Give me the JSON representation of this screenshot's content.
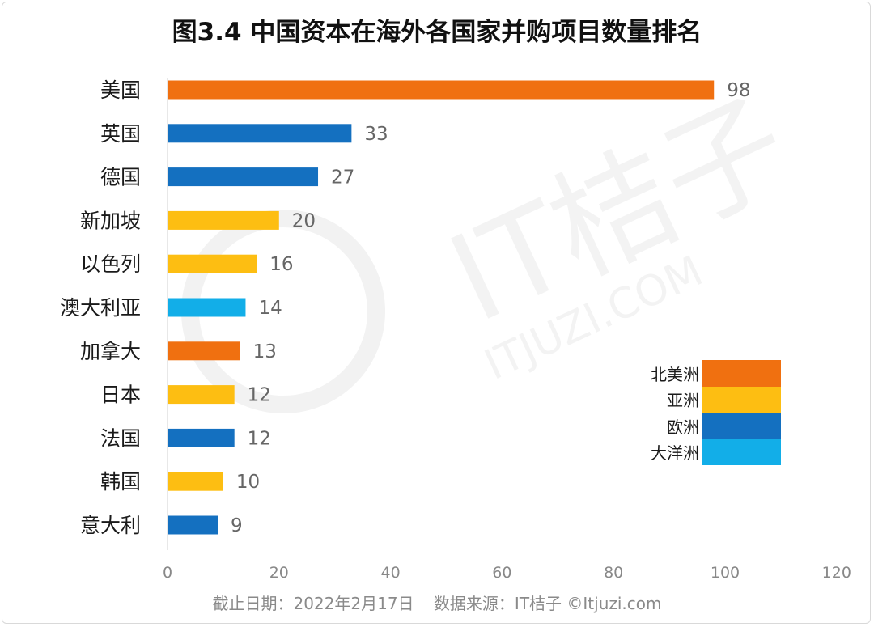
{
  "title": "图3.4  中国资本在海外各国家并购项目数量排名",
  "footer": {
    "date": "截止日期：2022年2月17日",
    "source": "数据来源：IT桔子 ©Itjuzi.com"
  },
  "watermark": {
    "brand": "IT桔子",
    "domain": "ITJUZI.COM"
  },
  "colors": {
    "北美洲": "#f07010",
    "亚洲": "#fdbe12",
    "欧洲": "#1470c0",
    "大洋洲": "#12aee8"
  },
  "legend": {
    "items": [
      {
        "label": "北美洲",
        "color": "#f07010"
      },
      {
        "label": "亚洲",
        "color": "#fdbe12"
      },
      {
        "label": "欧洲",
        "color": "#1470c0"
      },
      {
        "label": "大洋洲",
        "color": "#12aee8"
      }
    ]
  },
  "chart_data": {
    "type": "bar",
    "orientation": "horizontal",
    "title": "图3.4  中国资本在海外各国家并购项目数量排名",
    "categories": [
      "美国",
      "英国",
      "德国",
      "新加坡",
      "以色列",
      "澳大利亚",
      "加拿大",
      "日本",
      "法国",
      "韩国",
      "意大利"
    ],
    "values": [
      98,
      33,
      27,
      20,
      16,
      14,
      13,
      12,
      12,
      10,
      9
    ],
    "regions": [
      "北美洲",
      "欧洲",
      "欧洲",
      "亚洲",
      "亚洲",
      "大洋洲",
      "北美洲",
      "亚洲",
      "欧洲",
      "亚洲",
      "欧洲"
    ],
    "xlim": [
      0,
      120
    ],
    "xticks": [
      0,
      20,
      40,
      60,
      80,
      100,
      120
    ],
    "xlabel": "",
    "ylabel": "",
    "grid": false,
    "legend_position": "bottom-right"
  }
}
